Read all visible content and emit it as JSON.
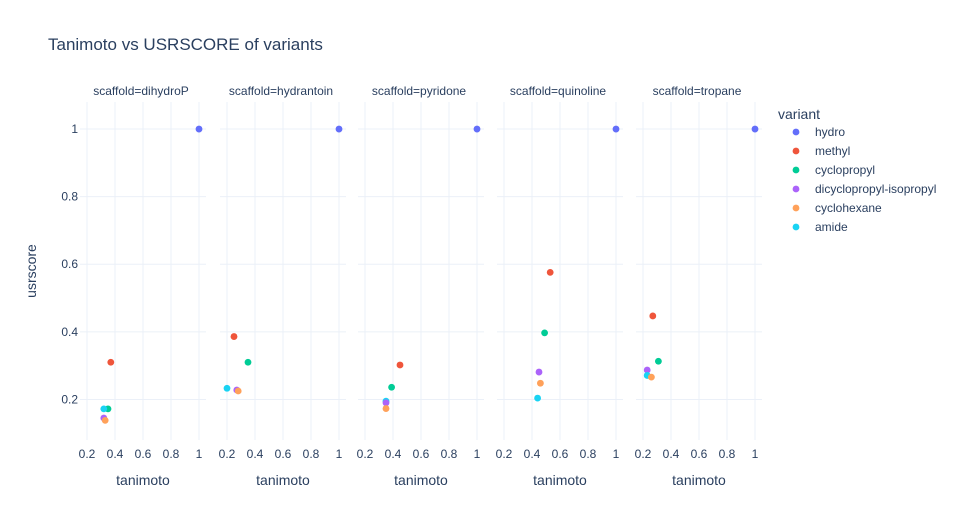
{
  "chart_data": {
    "type": "scatter",
    "title": "Tanimoto vs USRSCORE of variants",
    "xlabel": "tanimoto",
    "ylabel": "usrscore",
    "xlim": [
      0.15,
      1.05
    ],
    "ylim": [
      0.08,
      1.08
    ],
    "xticks": [
      0.2,
      0.4,
      0.6,
      0.8,
      1
    ],
    "yticks": [
      0.2,
      0.4,
      0.6,
      0.8,
      1
    ],
    "grid": true,
    "legend": {
      "title": "variant",
      "position": "right",
      "items": [
        {
          "name": "hydro",
          "color": "#636efa"
        },
        {
          "name": "methyl",
          "color": "#ef553b"
        },
        {
          "name": "cyclopropyl",
          "color": "#00cc96"
        },
        {
          "name": "dicyclopropyl-isopropyl",
          "color": "#ab63fa"
        },
        {
          "name": "cyclohexane",
          "color": "#ffa15a"
        },
        {
          "name": "amide",
          "color": "#19d3f3"
        }
      ]
    },
    "facets": [
      {
        "title": "scaffold=dihydroP",
        "points": [
          {
            "variant": "hydro",
            "x": 1.0,
            "y": 1.0
          },
          {
            "variant": "methyl",
            "x": 0.37,
            "y": 0.31
          },
          {
            "variant": "cyclopropyl",
            "x": 0.35,
            "y": 0.172
          },
          {
            "variant": "amide",
            "x": 0.32,
            "y": 0.172
          },
          {
            "variant": "dicyclopropyl-isopropyl",
            "x": 0.32,
            "y": 0.145
          },
          {
            "variant": "cyclohexane",
            "x": 0.33,
            "y": 0.138
          }
        ]
      },
      {
        "title": "scaffold=hydrantoin",
        "points": [
          {
            "variant": "hydro",
            "x": 1.0,
            "y": 1.0
          },
          {
            "variant": "methyl",
            "x": 0.25,
            "y": 0.386
          },
          {
            "variant": "cyclopropyl",
            "x": 0.35,
            "y": 0.31
          },
          {
            "variant": "amide",
            "x": 0.2,
            "y": 0.233
          },
          {
            "variant": "dicyclopropyl-isopropyl",
            "x": 0.27,
            "y": 0.228
          },
          {
            "variant": "cyclohexane",
            "x": 0.28,
            "y": 0.225
          }
        ]
      },
      {
        "title": "scaffold=pyridone",
        "points": [
          {
            "variant": "hydro",
            "x": 1.0,
            "y": 1.0
          },
          {
            "variant": "methyl",
            "x": 0.45,
            "y": 0.302
          },
          {
            "variant": "cyclopropyl",
            "x": 0.39,
            "y": 0.236
          },
          {
            "variant": "amide",
            "x": 0.35,
            "y": 0.195
          },
          {
            "variant": "dicyclopropyl-isopropyl",
            "x": 0.35,
            "y": 0.19
          },
          {
            "variant": "cyclohexane",
            "x": 0.35,
            "y": 0.173
          }
        ]
      },
      {
        "title": "scaffold=quinoline",
        "points": [
          {
            "variant": "hydro",
            "x": 1.0,
            "y": 1.0
          },
          {
            "variant": "methyl",
            "x": 0.53,
            "y": 0.576
          },
          {
            "variant": "cyclopropyl",
            "x": 0.49,
            "y": 0.397
          },
          {
            "variant": "dicyclopropyl-isopropyl",
            "x": 0.45,
            "y": 0.281
          },
          {
            "variant": "cyclohexane",
            "x": 0.46,
            "y": 0.248
          },
          {
            "variant": "amide",
            "x": 0.44,
            "y": 0.204
          }
        ]
      },
      {
        "title": "scaffold=tropane",
        "points": [
          {
            "variant": "hydro",
            "x": 1.0,
            "y": 1.0
          },
          {
            "variant": "methyl",
            "x": 0.27,
            "y": 0.447
          },
          {
            "variant": "cyclopropyl",
            "x": 0.31,
            "y": 0.313
          },
          {
            "variant": "dicyclopropyl-isopropyl",
            "x": 0.23,
            "y": 0.287
          },
          {
            "variant": "amide",
            "x": 0.23,
            "y": 0.271
          },
          {
            "variant": "cyclohexane",
            "x": 0.26,
            "y": 0.266
          }
        ]
      }
    ]
  }
}
